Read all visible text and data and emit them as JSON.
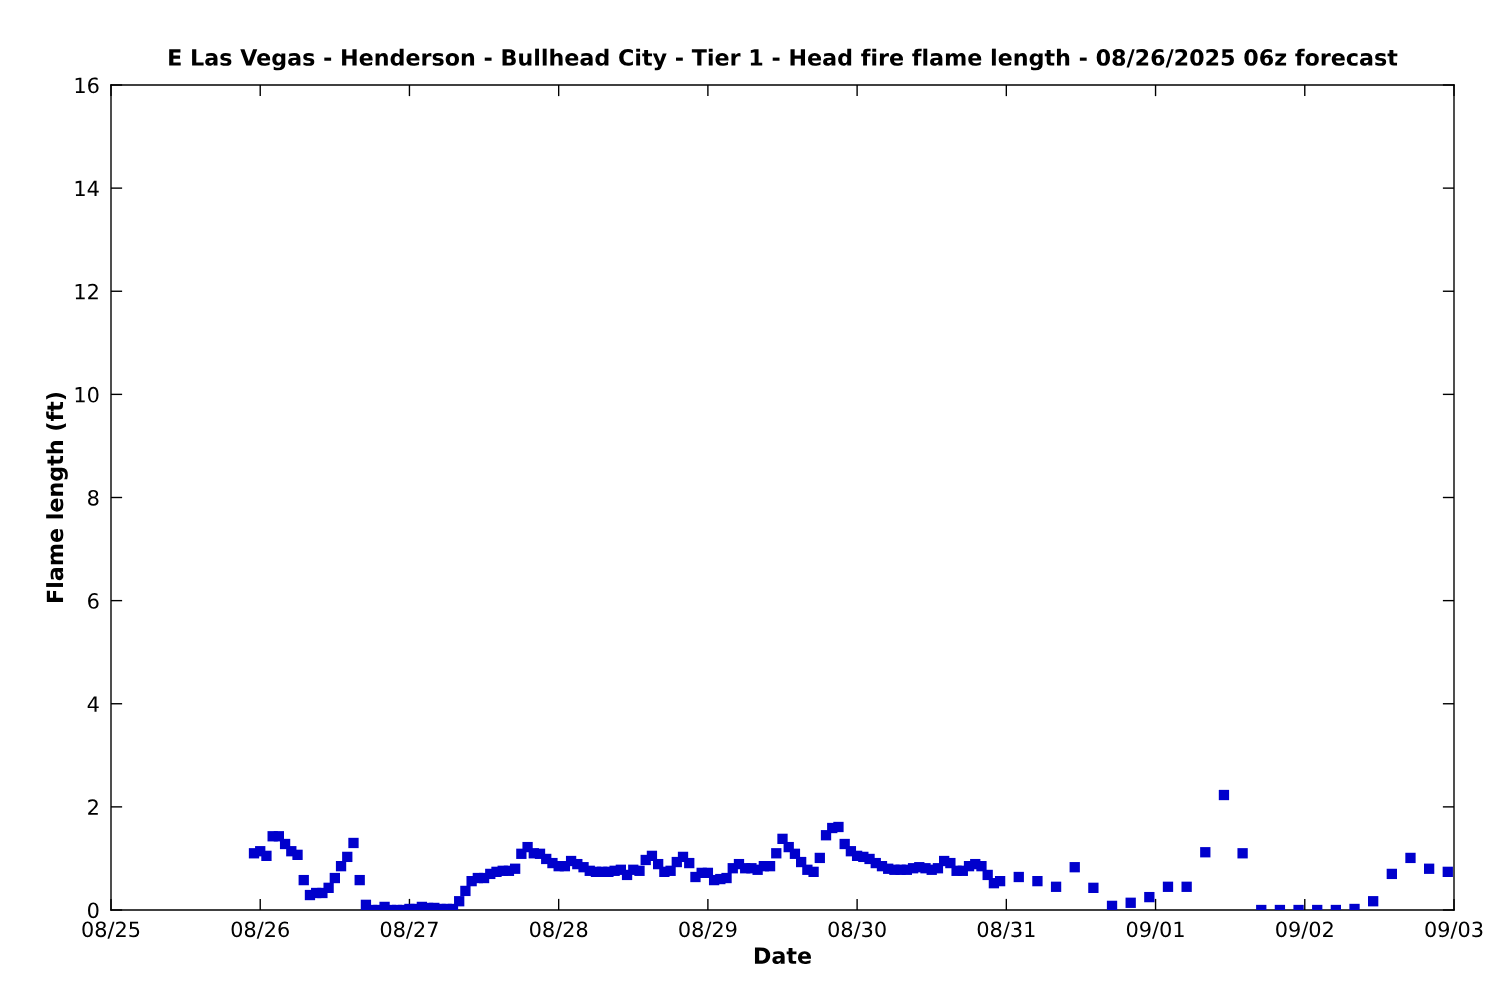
{
  "chart_data": {
    "type": "scatter",
    "title": "E Las Vegas - Henderson - Bullhead City - Tier 1 - Head fire flame length - 08/26/2025 06z forecast",
    "xlabel": "Date",
    "ylabel": "Flame length (ft)",
    "marker": "square",
    "grid": false,
    "legend": false,
    "xlim": [
      "2025-08-25",
      "2025-09-03"
    ],
    "xticks": [
      {
        "value": "2025-08-25",
        "label": "08/25"
      },
      {
        "value": "2025-08-26",
        "label": "08/26"
      },
      {
        "value": "2025-08-27",
        "label": "08/27"
      },
      {
        "value": "2025-08-28",
        "label": "08/28"
      },
      {
        "value": "2025-08-29",
        "label": "08/29"
      },
      {
        "value": "2025-08-30",
        "label": "08/30"
      },
      {
        "value": "2025-08-31",
        "label": "08/31"
      },
      {
        "value": "2025-09-01",
        "label": "09/01"
      },
      {
        "value": "2025-09-02",
        "label": "09/02"
      },
      {
        "value": "2025-09-03",
        "label": "09/03"
      }
    ],
    "ylim": [
      0,
      16
    ],
    "yticks": [
      0,
      2,
      4,
      6,
      8,
      10,
      12,
      14,
      16
    ],
    "series": [
      {
        "color": "#0000cc",
        "x": [
          "2025-08-25T23:00",
          "2025-08-26T00:00",
          "2025-08-26T01:00",
          "2025-08-26T02:00",
          "2025-08-26T03:00",
          "2025-08-26T04:00",
          "2025-08-26T05:00",
          "2025-08-26T06:00",
          "2025-08-26T07:00",
          "2025-08-26T08:00",
          "2025-08-26T09:00",
          "2025-08-26T10:00",
          "2025-08-26T11:00",
          "2025-08-26T12:00",
          "2025-08-26T13:00",
          "2025-08-26T14:00",
          "2025-08-26T15:00",
          "2025-08-26T16:00",
          "2025-08-26T17:00",
          "2025-08-26T18:00",
          "2025-08-26T19:00",
          "2025-08-26T20:00",
          "2025-08-26T21:00",
          "2025-08-26T22:00",
          "2025-08-26T23:00",
          "2025-08-27T00:00",
          "2025-08-27T01:00",
          "2025-08-27T02:00",
          "2025-08-27T03:00",
          "2025-08-27T04:00",
          "2025-08-27T05:00",
          "2025-08-27T06:00",
          "2025-08-27T07:00",
          "2025-08-27T08:00",
          "2025-08-27T09:00",
          "2025-08-27T10:00",
          "2025-08-27T11:00",
          "2025-08-27T12:00",
          "2025-08-27T13:00",
          "2025-08-27T14:00",
          "2025-08-27T15:00",
          "2025-08-27T16:00",
          "2025-08-27T17:00",
          "2025-08-27T18:00",
          "2025-08-27T19:00",
          "2025-08-27T20:00",
          "2025-08-27T21:00",
          "2025-08-27T22:00",
          "2025-08-27T23:00",
          "2025-08-28T00:00",
          "2025-08-28T01:00",
          "2025-08-28T02:00",
          "2025-08-28T03:00",
          "2025-08-28T04:00",
          "2025-08-28T05:00",
          "2025-08-28T06:00",
          "2025-08-28T07:00",
          "2025-08-28T08:00",
          "2025-08-28T09:00",
          "2025-08-28T10:00",
          "2025-08-28T11:00",
          "2025-08-28T12:00",
          "2025-08-28T13:00",
          "2025-08-28T14:00",
          "2025-08-28T15:00",
          "2025-08-28T16:00",
          "2025-08-28T17:00",
          "2025-08-28T18:00",
          "2025-08-28T19:00",
          "2025-08-28T20:00",
          "2025-08-28T21:00",
          "2025-08-28T22:00",
          "2025-08-28T23:00",
          "2025-08-29T00:00",
          "2025-08-29T01:00",
          "2025-08-29T02:00",
          "2025-08-29T03:00",
          "2025-08-29T04:00",
          "2025-08-29T05:00",
          "2025-08-29T06:00",
          "2025-08-29T07:00",
          "2025-08-29T08:00",
          "2025-08-29T09:00",
          "2025-08-29T10:00",
          "2025-08-29T11:00",
          "2025-08-29T12:00",
          "2025-08-29T13:00",
          "2025-08-29T14:00",
          "2025-08-29T15:00",
          "2025-08-29T16:00",
          "2025-08-29T17:00",
          "2025-08-29T18:00",
          "2025-08-29T19:00",
          "2025-08-29T20:00",
          "2025-08-29T21:00",
          "2025-08-29T22:00",
          "2025-08-29T23:00",
          "2025-08-30T00:00",
          "2025-08-30T01:00",
          "2025-08-30T02:00",
          "2025-08-30T03:00",
          "2025-08-30T04:00",
          "2025-08-30T05:00",
          "2025-08-30T06:00",
          "2025-08-30T07:00",
          "2025-08-30T08:00",
          "2025-08-30T09:00",
          "2025-08-30T10:00",
          "2025-08-30T11:00",
          "2025-08-30T12:00",
          "2025-08-30T13:00",
          "2025-08-30T14:00",
          "2025-08-30T15:00",
          "2025-08-30T16:00",
          "2025-08-30T17:00",
          "2025-08-30T18:00",
          "2025-08-30T19:00",
          "2025-08-30T20:00",
          "2025-08-30T21:00",
          "2025-08-30T22:00",
          "2025-08-30T23:00",
          "2025-08-31T02:00",
          "2025-08-31T05:00",
          "2025-08-31T08:00",
          "2025-08-31T11:00",
          "2025-08-31T14:00",
          "2025-08-31T17:00",
          "2025-08-31T20:00",
          "2025-08-31T23:00",
          "2025-09-01T02:00",
          "2025-09-01T05:00",
          "2025-09-01T08:00",
          "2025-09-01T11:00",
          "2025-09-01T14:00",
          "2025-09-01T17:00",
          "2025-09-01T20:00",
          "2025-09-01T23:00",
          "2025-09-02T02:00",
          "2025-09-02T05:00",
          "2025-09-02T08:00",
          "2025-09-02T11:00",
          "2025-09-02T14:00",
          "2025-09-02T17:00",
          "2025-09-02T20:00",
          "2025-09-02T23:00"
        ],
        "values": [
          1.1,
          1.14,
          1.05,
          1.43,
          1.43,
          1.28,
          1.14,
          1.07,
          0.58,
          0.29,
          0.33,
          0.33,
          0.43,
          0.62,
          0.85,
          1.03,
          1.3,
          0.58,
          0.1,
          0,
          0,
          0.06,
          0,
          0,
          0,
          0.02,
          0.02,
          0.06,
          0.04,
          0.04,
          0.02,
          0.02,
          0.02,
          0.17,
          0.37,
          0.56,
          0.62,
          0.62,
          0.7,
          0.74,
          0.76,
          0.76,
          0.8,
          1.09,
          1.22,
          1.1,
          1.09,
          0.99,
          0.91,
          0.85,
          0.85,
          0.95,
          0.89,
          0.83,
          0.76,
          0.74,
          0.74,
          0.74,
          0.76,
          0.78,
          0.68,
          0.78,
          0.76,
          0.97,
          1.05,
          0.89,
          0.74,
          0.76,
          0.93,
          1.03,
          0.91,
          0.64,
          0.72,
          0.72,
          0.58,
          0.6,
          0.62,
          0.81,
          0.89,
          0.81,
          0.81,
          0.78,
          0.85,
          0.85,
          1.1,
          1.38,
          1.22,
          1.09,
          0.93,
          0.78,
          0.74,
          1.01,
          1.45,
          1.59,
          1.61,
          1.28,
          1.14,
          1.05,
          1.03,
          0.99,
          0.91,
          0.85,
          0.8,
          0.78,
          0.78,
          0.78,
          0.81,
          0.83,
          0.81,
          0.78,
          0.81,
          0.95,
          0.91,
          0.76,
          0.76,
          0.85,
          0.89,
          0.85,
          0.68,
          0.52,
          0.56,
          0.64,
          0.56,
          0.45,
          0.83,
          0.43,
          0.08,
          0.14,
          0.25,
          0.45,
          0.45,
          1.12,
          2.23,
          1.1,
          0,
          0,
          0,
          0,
          0,
          0.02,
          0.17,
          0.7,
          1.01,
          0.8,
          0.74
        ]
      }
    ]
  }
}
